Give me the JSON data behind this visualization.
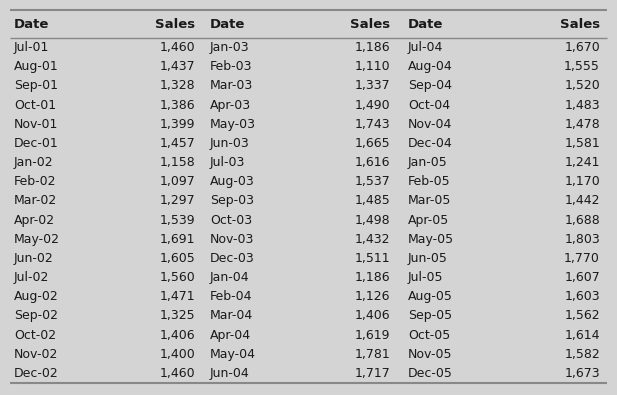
{
  "columns": [
    "Date",
    "Sales",
    "Date",
    "Sales",
    "Date",
    "Sales"
  ],
  "col1_dates": [
    "Jul-01",
    "Aug-01",
    "Sep-01",
    "Oct-01",
    "Nov-01",
    "Dec-01",
    "Jan-02",
    "Feb-02",
    "Mar-02",
    "Apr-02",
    "May-02",
    "Jun-02",
    "Jul-02",
    "Aug-02",
    "Sep-02",
    "Oct-02",
    "Nov-02",
    "Dec-02"
  ],
  "col1_sales": [
    "1,460",
    "1,437",
    "1,328",
    "1,386",
    "1,399",
    "1,457",
    "1,158",
    "1,097",
    "1,297",
    "1,539",
    "1,691",
    "1,605",
    "1,560",
    "1,471",
    "1,325",
    "1,406",
    "1,400",
    "1,460"
  ],
  "col2_dates": [
    "Jan-03",
    "Feb-03",
    "Mar-03",
    "Apr-03",
    "May-03",
    "Jun-03",
    "Jul-03",
    "Aug-03",
    "Sep-03",
    "Oct-03",
    "Nov-03",
    "Dec-03",
    "Jan-04",
    "Feb-04",
    "Mar-04",
    "Apr-04",
    "May-04",
    "Jun-04"
  ],
  "col2_sales": [
    "1,186",
    "1,110",
    "1,337",
    "1,490",
    "1,743",
    "1,665",
    "1,616",
    "1,537",
    "1,485",
    "1,498",
    "1,432",
    "1,511",
    "1,186",
    "1,126",
    "1,406",
    "1,619",
    "1,781",
    "1,717"
  ],
  "col3_dates": [
    "Jul-04",
    "Aug-04",
    "Sep-04",
    "Oct-04",
    "Nov-04",
    "Dec-04",
    "Jan-05",
    "Feb-05",
    "Mar-05",
    "Apr-05",
    "May-05",
    "Jun-05",
    "Jul-05",
    "Aug-05",
    "Sep-05",
    "Oct-05",
    "Nov-05",
    "Dec-05"
  ],
  "col3_sales": [
    "1,670",
    "1,555",
    "1,520",
    "1,483",
    "1,478",
    "1,581",
    "1,241",
    "1,170",
    "1,442",
    "1,688",
    "1,803",
    "1,770",
    "1,607",
    "1,603",
    "1,562",
    "1,614",
    "1,582",
    "1,673"
  ],
  "bg_color": "#e8e8e8",
  "text_color": "#1a1a1a",
  "header_fontsize": 9.5,
  "row_fontsize": 9.0,
  "line_color": "#888888",
  "fig_bg": "#d4d4d4"
}
